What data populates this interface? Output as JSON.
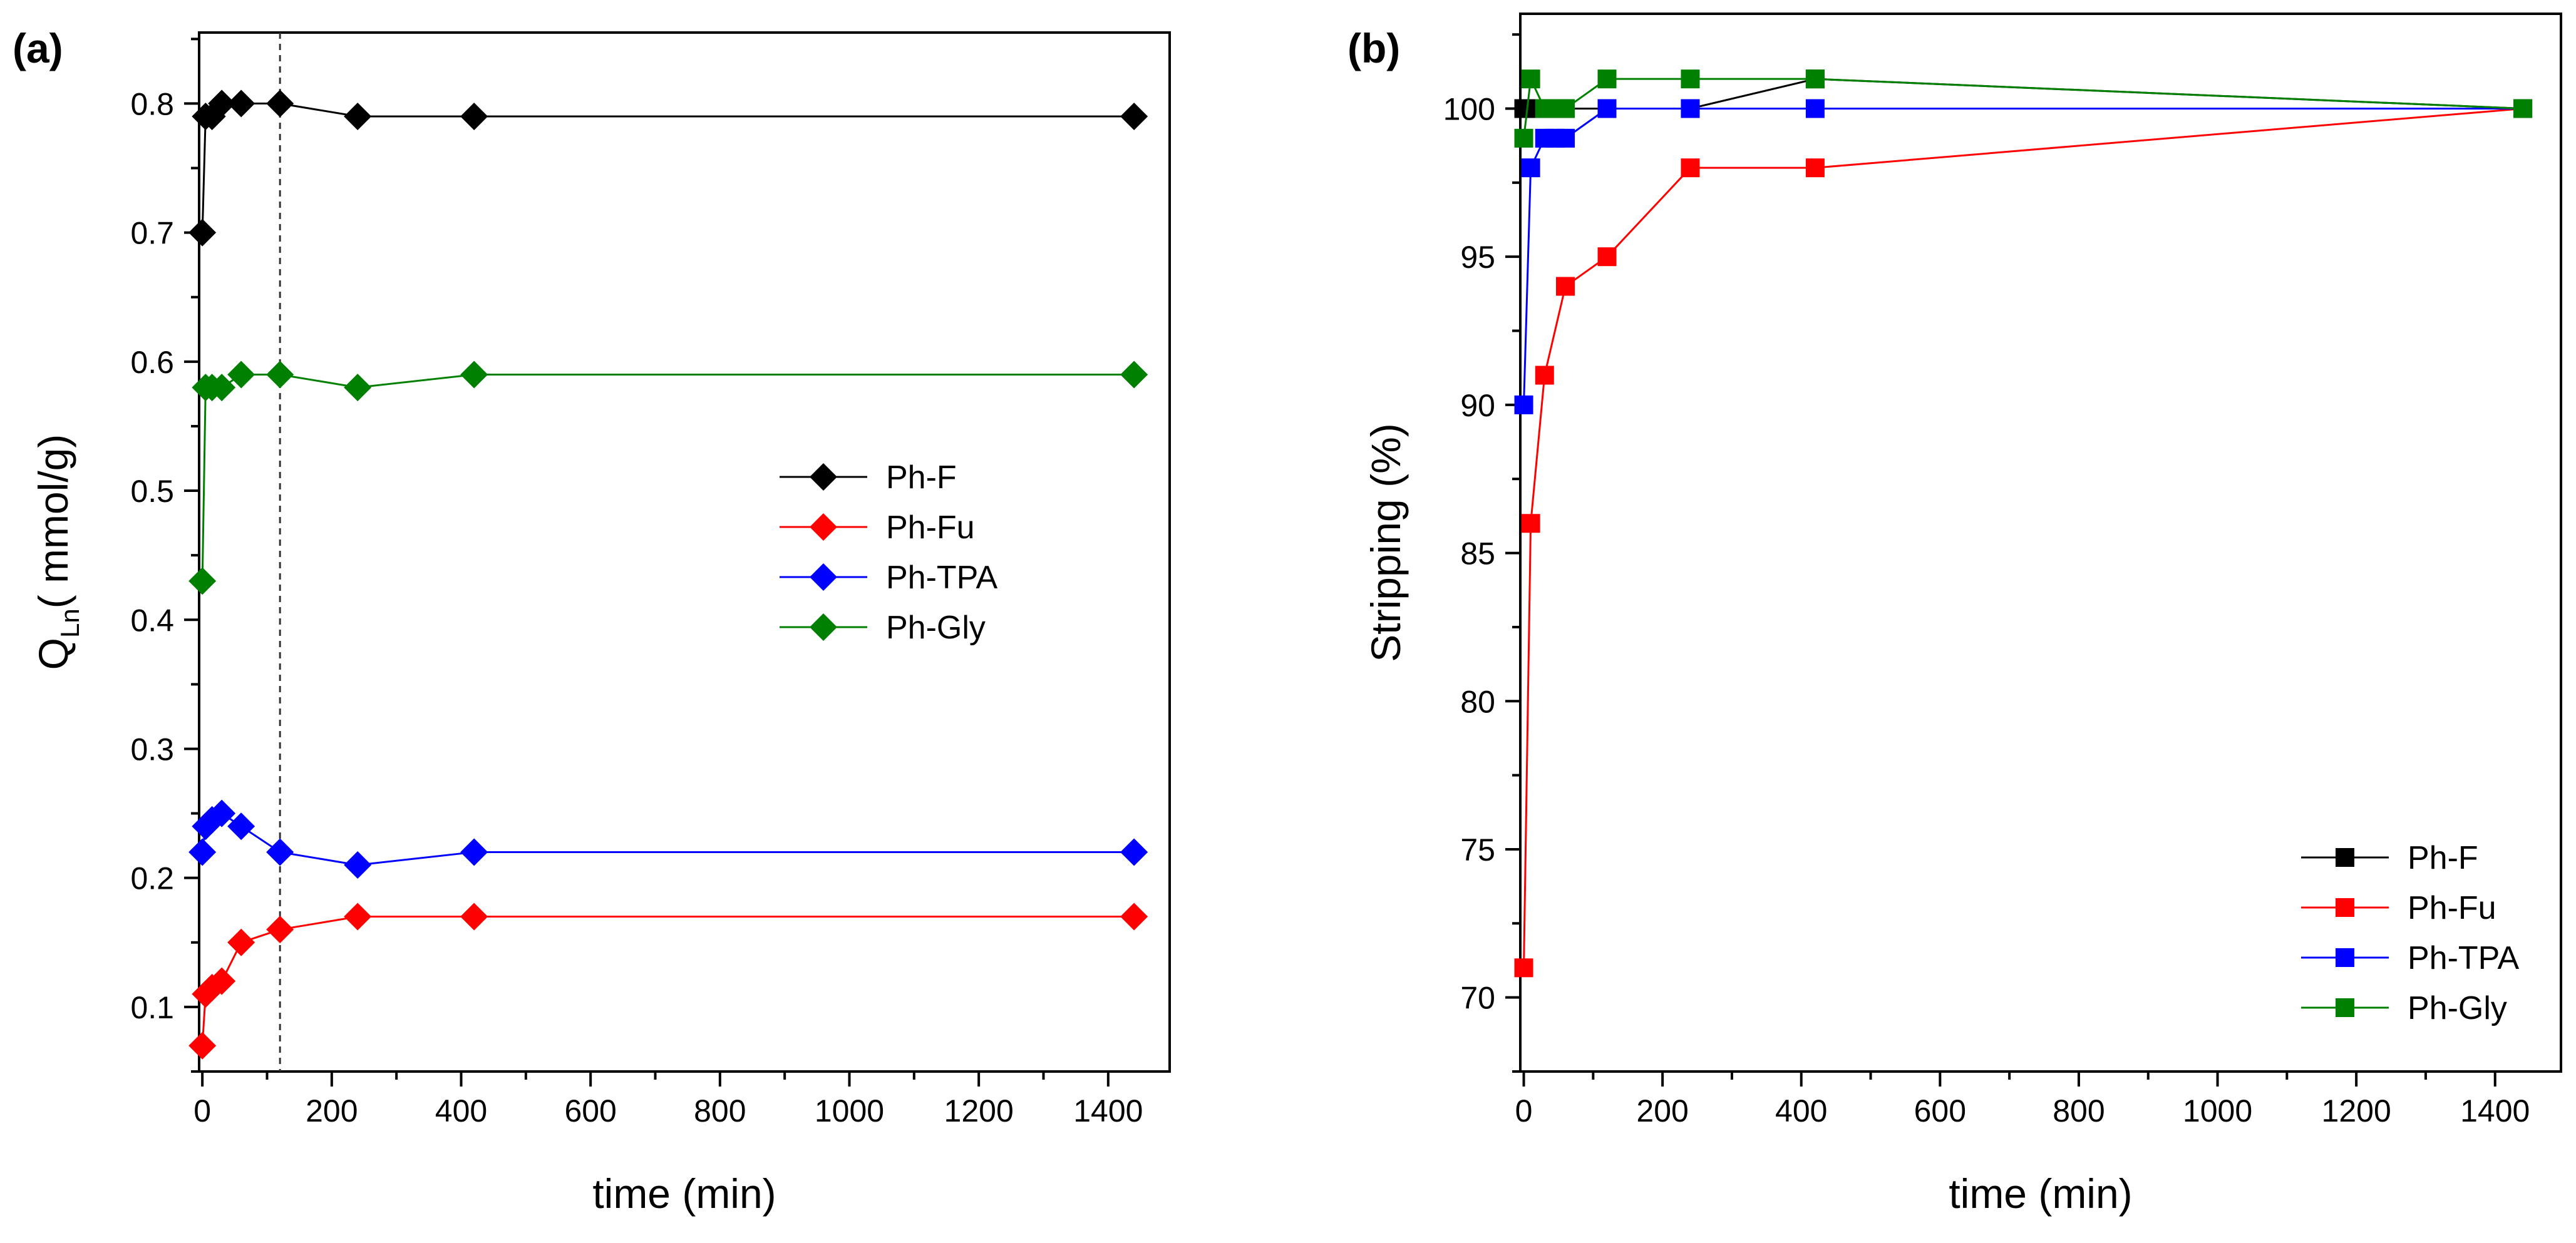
{
  "chart_data": [
    {
      "type": "line",
      "panel_label": "(a)",
      "xlabel": "time (min)",
      "ylabel": "Q",
      "ylabel_sub": "Ln",
      "ylabel_suffix": "( mmol/g)",
      "xlim": [
        -5,
        1495
      ],
      "ylim": [
        0.05,
        0.855
      ],
      "xticks": [
        0,
        200,
        400,
        600,
        800,
        1000,
        1200,
        1400
      ],
      "yticks": [
        0.1,
        0.2,
        0.3,
        0.4,
        0.5,
        0.6,
        0.7,
        0.8
      ],
      "ytick_labels": [
        "0.1",
        "0.2",
        "0.3",
        "0.4",
        "0.5",
        "0.6",
        "0.7",
        "0.8"
      ],
      "marker": "diamond",
      "vline_x": 120,
      "legend_position": "center-right",
      "series": [
        {
          "name": "Ph-F",
          "color": "#000000",
          "x": [
            0,
            5,
            15,
            30,
            60,
            120,
            240,
            420,
            1440
          ],
          "y": [
            0.7,
            0.79,
            0.79,
            0.8,
            0.8,
            0.8,
            0.79,
            0.79,
            0.79
          ]
        },
        {
          "name": "Ph-Fu",
          "color": "#ff0000",
          "x": [
            0,
            5,
            15,
            30,
            60,
            120,
            240,
            420,
            1440
          ],
          "y": [
            0.07,
            0.11,
            0.115,
            0.12,
            0.15,
            0.16,
            0.17,
            0.17,
            0.17
          ]
        },
        {
          "name": "Ph-TPA",
          "color": "#0000ff",
          "x": [
            0,
            5,
            15,
            30,
            60,
            120,
            240,
            420,
            1440
          ],
          "y": [
            0.22,
            0.24,
            0.245,
            0.25,
            0.24,
            0.22,
            0.21,
            0.22,
            0.22
          ]
        },
        {
          "name": "Ph-Gly",
          "color": "#008000",
          "x": [
            0,
            5,
            15,
            30,
            60,
            120,
            240,
            420,
            1440
          ],
          "y": [
            0.43,
            0.58,
            0.58,
            0.58,
            0.59,
            0.59,
            0.58,
            0.59,
            0.59
          ]
        }
      ]
    },
    {
      "type": "line",
      "panel_label": "(b)",
      "xlabel": "time (min)",
      "ylabel": "Stripping (%)",
      "xlim": [
        -5,
        1495
      ],
      "ylim": [
        67.5,
        103.2
      ],
      "xticks": [
        0,
        200,
        400,
        600,
        800,
        1000,
        1200,
        1400
      ],
      "yticks": [
        70,
        75,
        80,
        85,
        90,
        95,
        100
      ],
      "ytick_labels": [
        "70",
        "75",
        "80",
        "85",
        "90",
        "95",
        "100"
      ],
      "marker": "square",
      "legend_position": "lower-right",
      "series": [
        {
          "name": "Ph-F",
          "color": "#000000",
          "x": [
            0,
            10,
            30,
            60,
            120,
            240,
            420,
            1440
          ],
          "y": [
            100,
            100,
            100,
            100,
            100,
            100,
            101,
            100
          ]
        },
        {
          "name": "Ph-Fu",
          "color": "#ff0000",
          "x": [
            0,
            10,
            30,
            60,
            120,
            240,
            420,
            1440
          ],
          "y": [
            71,
            86,
            91,
            94,
            95,
            98,
            98,
            100
          ]
        },
        {
          "name": "Ph-TPA",
          "color": "#0000ff",
          "x": [
            0,
            10,
            30,
            45,
            60,
            120,
            240,
            420,
            1440
          ],
          "y": [
            90,
            98,
            99,
            99,
            99,
            100,
            100,
            100,
            100
          ]
        },
        {
          "name": "Ph-Gly",
          "color": "#008000",
          "x": [
            0,
            10,
            30,
            45,
            60,
            120,
            240,
            420,
            1440
          ],
          "y": [
            99,
            101,
            100,
            100,
            100,
            101,
            101,
            101,
            100
          ]
        }
      ]
    }
  ]
}
